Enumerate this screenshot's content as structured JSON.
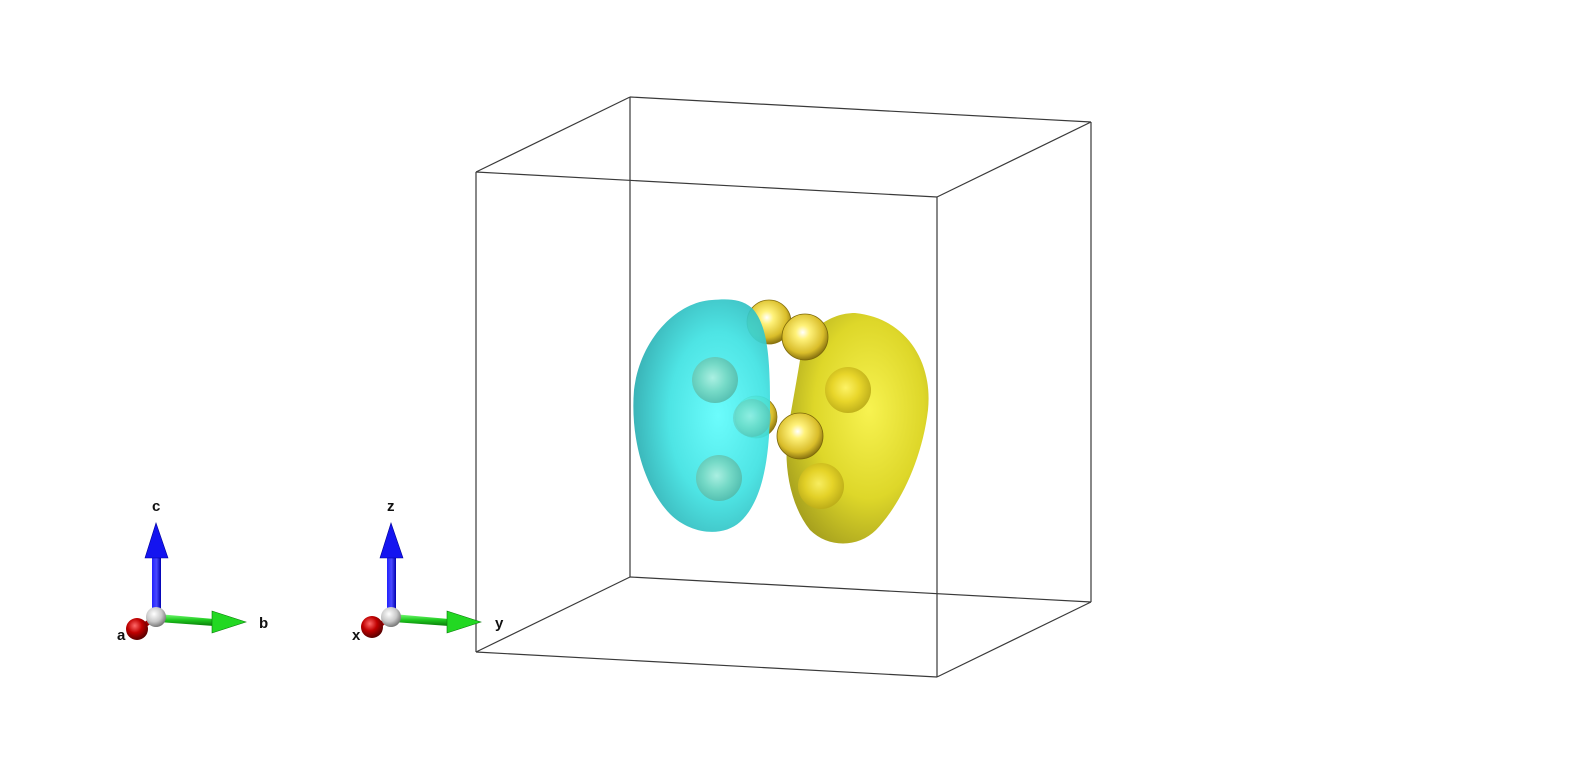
{
  "lattice_axes": {
    "a": "a",
    "b": "b",
    "c": "c"
  },
  "cartesian_axes": {
    "x": "x",
    "y": "y",
    "z": "z"
  },
  "colors": {
    "axis_a": "#b30000",
    "axis_b": "#1ec81e",
    "axis_c": "#0a0ae6",
    "axis_origin": "#e0e0e0",
    "isosurface_negative": "#3ee6e6",
    "isosurface_positive": "#d6d21a",
    "atom": "#e8d24a",
    "unit_cell": "#3a3a3a"
  }
}
